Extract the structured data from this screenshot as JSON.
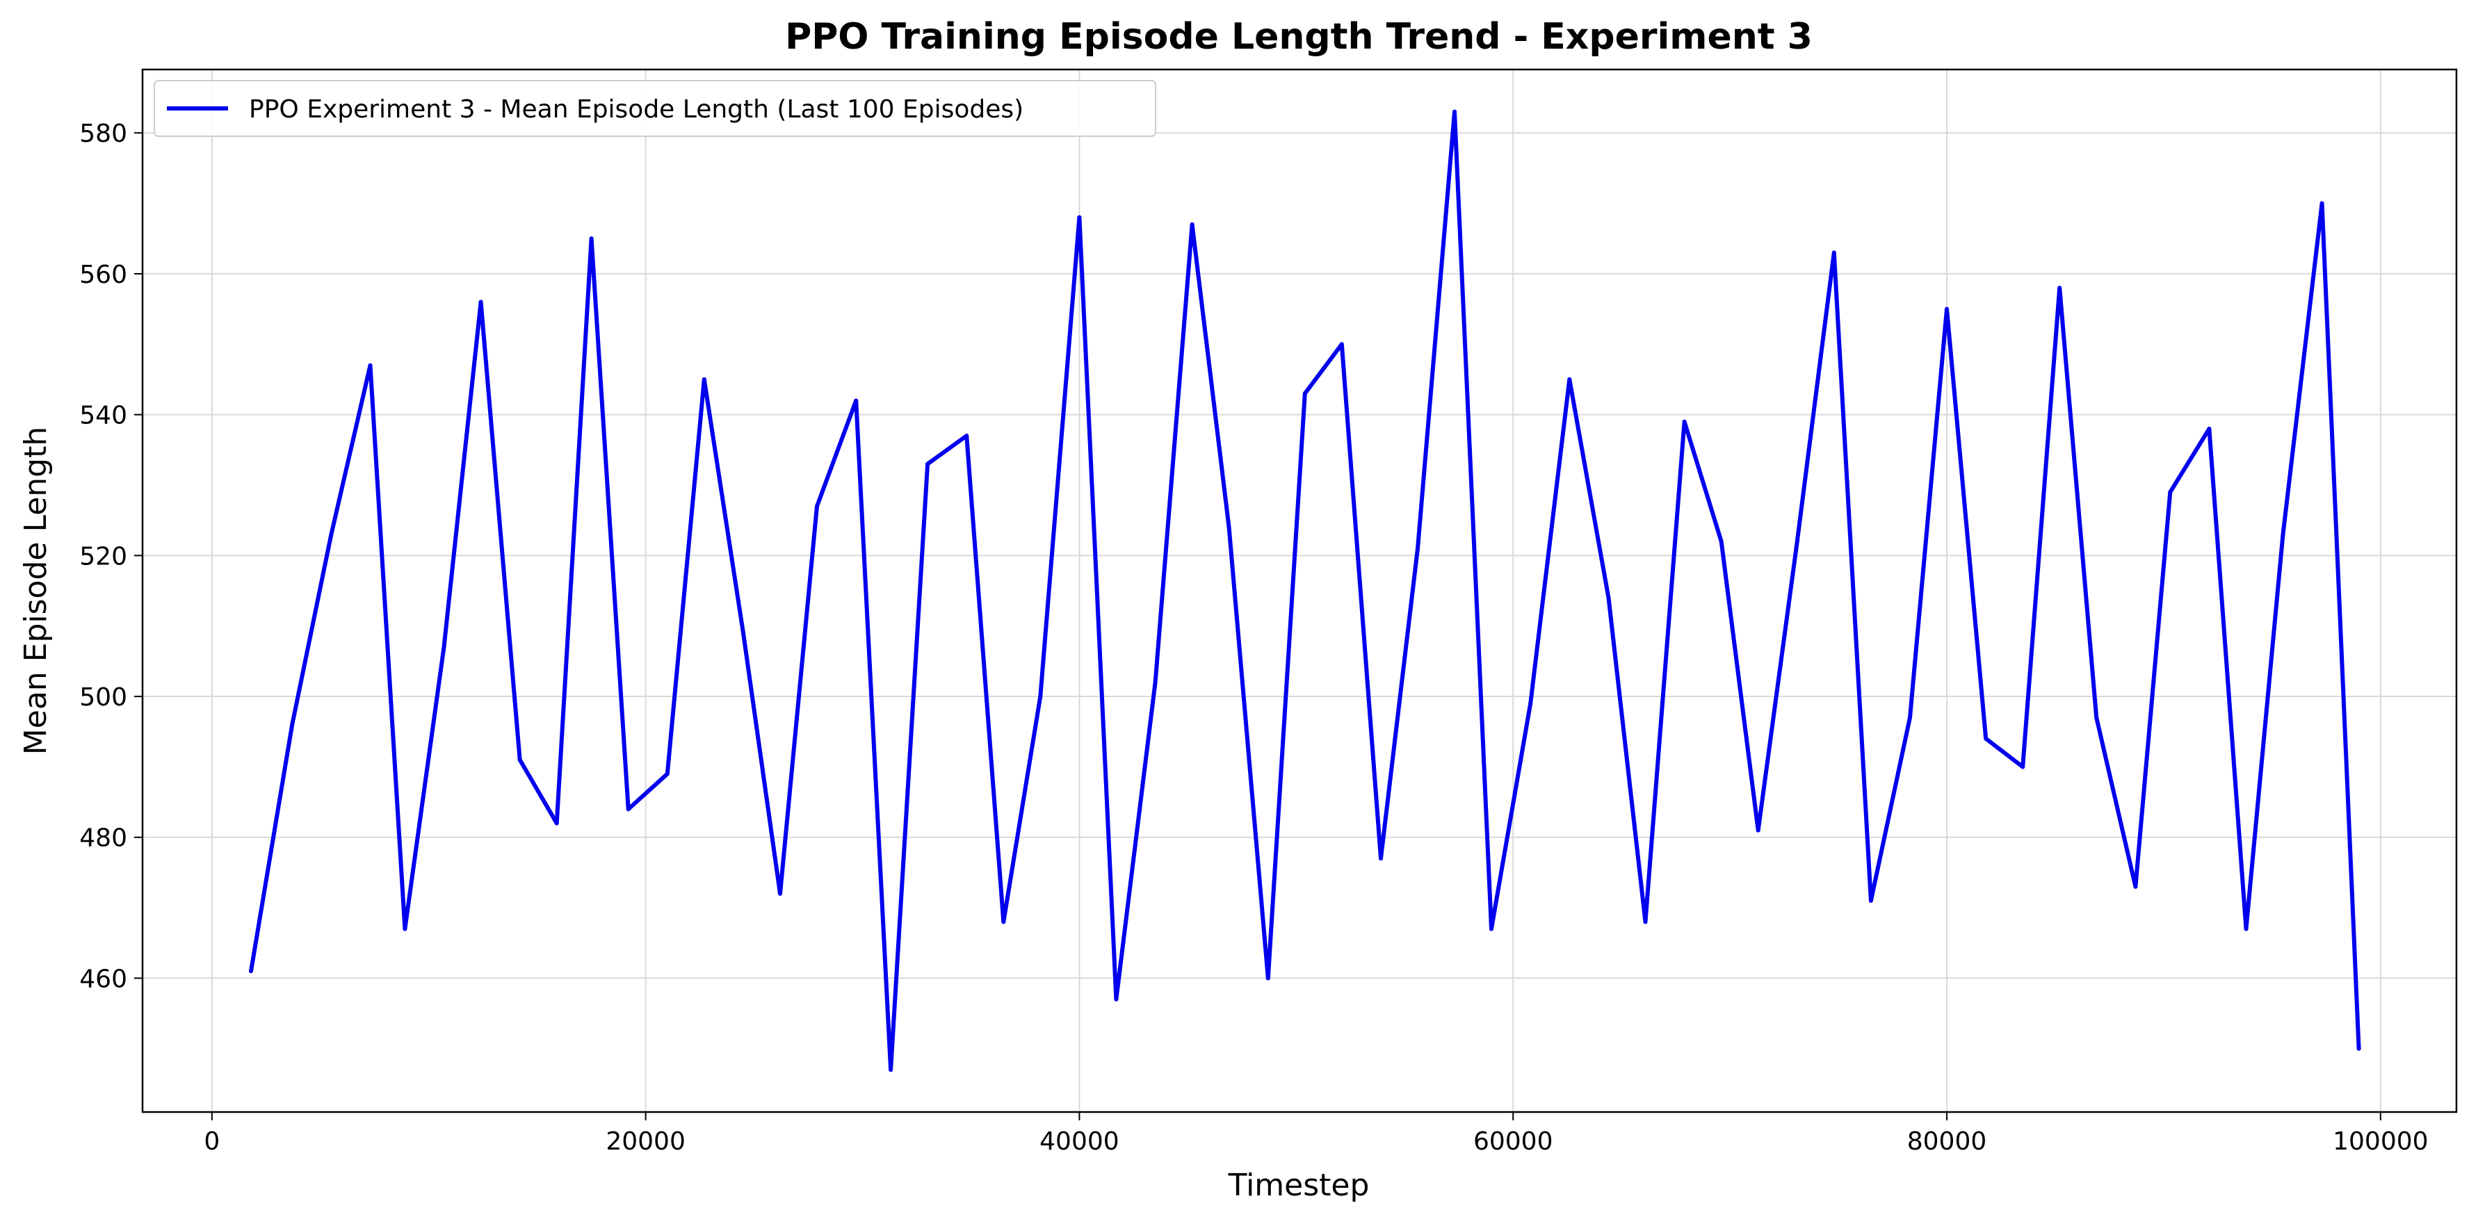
{
  "chart_data": {
    "type": "line",
    "title": "PPO Training Episode Length Trend - Experiment 3",
    "xlabel": "Timestep",
    "ylabel": "Mean Episode Length",
    "xlim": [
      -3200,
      103500
    ],
    "ylim": [
      441,
      589
    ],
    "xticks": [
      0,
      20000,
      40000,
      60000,
      80000,
      100000
    ],
    "xtick_labels": [
      "0",
      "20000",
      "40000",
      "60000",
      "80000",
      "100000"
    ],
    "yticks": [
      460,
      480,
      500,
      520,
      540,
      560,
      580
    ],
    "ytick_labels": [
      "460",
      "480",
      "500",
      "520",
      "540",
      "560",
      "580"
    ],
    "grid": true,
    "legend_position": "top-left",
    "series": [
      {
        "name": "PPO Experiment 3 - Mean Episode Length (Last 100 Episodes)",
        "color": "#0000ee",
        "x": [
          1800,
          3700,
          5500,
          7300,
          8900,
          10700,
          12400,
          14200,
          15900,
          17500,
          19200,
          21000,
          22700,
          24500,
          26200,
          27900,
          29700,
          31300,
          33000,
          34800,
          36500,
          38200,
          40000,
          41700,
          43500,
          45200,
          46900,
          48700,
          50400,
          52100,
          53900,
          55600,
          57300,
          59000,
          60800,
          62600,
          64400,
          66100,
          67900,
          69600,
          71300,
          73100,
          74800,
          76500,
          78300,
          80000,
          81800,
          83500,
          85200,
          86900,
          88700,
          90300,
          92100,
          93800,
          95500,
          97300,
          99000
        ],
        "y": [
          461,
          496,
          523,
          547,
          467,
          507,
          556,
          491,
          482,
          565,
          484,
          489,
          545,
          509,
          472,
          527,
          542,
          447,
          533,
          537,
          468,
          500,
          568,
          457,
          502,
          567,
          524,
          460,
          543,
          550,
          477,
          521,
          583,
          467,
          499,
          545,
          514,
          468,
          539,
          522,
          481,
          522,
          563,
          471,
          497,
          555,
          494,
          490,
          558,
          497,
          473,
          529,
          538,
          467,
          523,
          570,
          450
        ]
      }
    ]
  }
}
